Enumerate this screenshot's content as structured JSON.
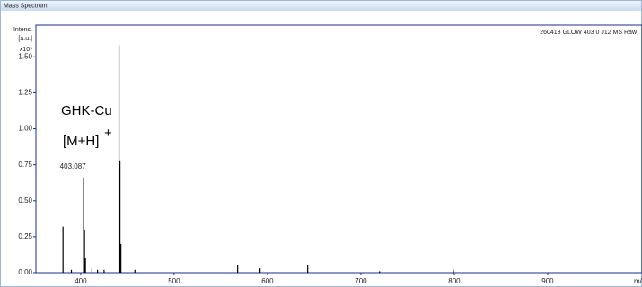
{
  "chart_data": {
    "type": "stem",
    "title": "Mass Spectrum",
    "sample": "260413 GLOW 403 0 J12 MS Raw",
    "y_label": [
      "Intens.",
      "[a.u.]"
    ],
    "y_multiplier": "x10⁵",
    "x_label": "m/z",
    "annotations": [
      "GHK-Cu",
      "[M+H]",
      "+"
    ],
    "color": "#000000",
    "x": [
      381,
      390,
      403.087,
      404,
      405,
      412,
      418,
      425,
      441,
      442,
      443,
      458,
      568,
      592,
      643,
      720,
      799
    ],
    "values": [
      0.32,
      0.02,
      0.66,
      0.3,
      0.1,
      0.03,
      0.02,
      0.02,
      1.58,
      0.78,
      0.2,
      0.02,
      0.05,
      0.03,
      0.05,
      0.01,
      0.02
    ],
    "xlim": [
      352,
      1001
    ],
    "xticks": [
      400,
      500,
      600,
      700,
      800,
      900
    ],
    "ylim": [
      0,
      1.72
    ],
    "yticks": [
      {
        "value": 0,
        "label": "0.00"
      },
      0.25,
      {
        "value": 0.5,
        "label": "0.50"
      },
      0.75,
      {
        "value": 1,
        "label": "1.00"
      },
      1.25,
      {
        "value": 1.5,
        "label": "1.50"
      }
    ]
  }
}
